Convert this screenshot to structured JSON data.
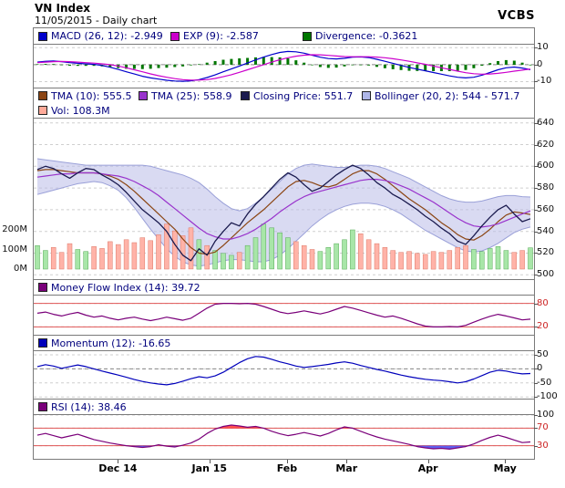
{
  "header": {
    "title": "VN Index",
    "subtitle": "11/05/2015 - Daily chart",
    "brand": "VCBS"
  },
  "legends": {
    "macd": [
      {
        "label": "MACD (26, 12): -2.949",
        "color": "#0000CC"
      },
      {
        "label": "EXP (9): -2.587",
        "color": "#CC00CC"
      },
      {
        "label": "Divergence: -0.3621",
        "color": "#007700"
      }
    ],
    "price_row1": [
      {
        "label": "TMA (10): 555.5",
        "color": "#8B4513"
      },
      {
        "label": "TMA (25): 558.9",
        "color": "#9933CC"
      },
      {
        "label": "Closing Price: 551.7",
        "color": "#1A1A4E"
      },
      {
        "label": "Bollinger (20, 2): 544 - 571.7",
        "color": "#AEB6E8"
      }
    ],
    "price_row2": [
      {
        "label": "Vol: 108.3M",
        "color": "#FFAA99"
      }
    ],
    "mfi": [
      {
        "label": "Money Flow Index (14): 39.72",
        "color": "#7A007A"
      }
    ],
    "momentum": [
      {
        "label": "Momentum (12): -16.65",
        "color": "#0000BB"
      }
    ],
    "rsi": [
      {
        "label": "RSI (14): 38.46",
        "color": "#7A007A"
      }
    ]
  },
  "x_axis": {
    "labels": [
      {
        "t": "Dec 14",
        "f": 0.17
      },
      {
        "t": "Jan 15",
        "f": 0.353
      },
      {
        "t": "Feb",
        "f": 0.508
      },
      {
        "t": "Mar",
        "f": 0.627
      },
      {
        "t": "Apr",
        "f": 0.79
      },
      {
        "t": "May",
        "f": 0.944
      }
    ]
  },
  "chart_data": [
    {
      "id": "macd",
      "type": "line",
      "title": "MACD indicator panel",
      "yticks": [
        10,
        0,
        -10
      ],
      "current": {
        "macd": -2.949,
        "exp": -2.587,
        "divergence": -0.3621
      },
      "series": [
        {
          "name": "MACD (26, 12)",
          "color": "#0000CC",
          "values": [
            1.5,
            2.0,
            2.2,
            1.8,
            1.2,
            0.8,
            0.5,
            0.2,
            -0.5,
            -1.5,
            -2.8,
            -4.2,
            -5.5,
            -6.8,
            -7.8,
            -8.5,
            -9.2,
            -9.6,
            -9.8,
            -9.5,
            -8.8,
            -7.6,
            -6.0,
            -4.2,
            -2.5,
            -0.8,
            1.0,
            2.8,
            4.5,
            6.0,
            7.2,
            7.8,
            7.6,
            6.8,
            5.6,
            4.4,
            3.6,
            3.4,
            3.8,
            4.4,
            4.6,
            4.2,
            3.2,
            2.0,
            0.8,
            -0.4,
            -1.6,
            -2.6,
            -3.6,
            -4.6,
            -5.6,
            -6.6,
            -7.4,
            -7.8,
            -7.4,
            -6.2,
            -4.6,
            -3.0,
            -1.8,
            -1.4,
            -2.0,
            -2.949
          ]
        },
        {
          "name": "EXP (9)",
          "color": "#CC00CC",
          "values": [
            1.2,
            1.5,
            1.8,
            1.9,
            1.8,
            1.5,
            1.2,
            0.9,
            0.5,
            0.0,
            -0.8,
            -1.8,
            -3.0,
            -4.2,
            -5.4,
            -6.5,
            -7.4,
            -8.2,
            -8.8,
            -9.1,
            -9.1,
            -8.8,
            -8.1,
            -7.1,
            -5.9,
            -4.5,
            -3.0,
            -1.5,
            0.0,
            1.5,
            2.9,
            4.1,
            5.0,
            5.6,
            5.9,
            5.8,
            5.5,
            5.1,
            4.8,
            4.7,
            4.7,
            4.7,
            4.5,
            4.1,
            3.5,
            2.8,
            2.0,
            1.1,
            0.2,
            -0.8,
            -1.8,
            -2.8,
            -3.8,
            -4.7,
            -5.3,
            -5.6,
            -5.5,
            -5.1,
            -4.5,
            -3.8,
            -3.2,
            -2.587
          ]
        }
      ],
      "histogram": {
        "name": "Divergence",
        "color": "#007700",
        "values": [
          0.3,
          0.5,
          0.4,
          -0.1,
          -0.6,
          -0.7,
          -0.7,
          -0.7,
          -1.0,
          -1.5,
          -2.0,
          -2.4,
          -2.5,
          -2.6,
          -2.4,
          -2.0,
          -1.8,
          -1.4,
          -1.0,
          -0.4,
          0.3,
          1.2,
          2.1,
          2.9,
          3.4,
          3.7,
          4.0,
          4.3,
          4.5,
          4.5,
          4.3,
          3.7,
          2.6,
          1.2,
          -0.3,
          -1.4,
          -1.9,
          -1.7,
          -1.0,
          -0.3,
          -0.1,
          -0.5,
          -1.3,
          -2.1,
          -2.7,
          -3.2,
          -3.6,
          -3.7,
          -3.8,
          -3.8,
          -3.8,
          -3.8,
          -3.6,
          -3.1,
          -2.1,
          -0.6,
          0.9,
          2.1,
          2.7,
          2.4,
          1.2,
          -0.362
        ]
      }
    },
    {
      "id": "price",
      "type": "line",
      "title": "VN Index price with Bollinger bands and volume",
      "yticks": [
        640,
        620,
        600,
        580,
        560,
        540,
        520,
        500
      ],
      "vol_ticks": [
        {
          "t": "200M",
          "v": 200
        },
        {
          "t": "100M",
          "v": 100
        },
        {
          "t": "0M",
          "v": 0
        }
      ],
      "current": {
        "tma10": 555.5,
        "tma25": 558.9,
        "close": 551.7,
        "bollinger": "544 - 571.7",
        "vol": "108.3M"
      },
      "series": [
        {
          "name": "TMA (10)",
          "color": "#8B4513",
          "values": [
            596,
            597,
            597,
            596,
            595,
            594,
            594,
            594,
            593,
            591,
            588,
            583,
            577,
            570,
            563,
            556,
            549,
            542,
            533,
            525,
            520,
            519,
            521,
            527,
            534,
            541,
            548,
            554,
            560,
            567,
            574,
            581,
            586,
            587,
            585,
            582,
            581,
            583,
            588,
            593,
            596,
            596,
            593,
            588,
            582,
            576,
            570,
            565,
            560,
            554,
            548,
            543,
            537,
            533,
            532,
            536,
            542,
            549,
            555,
            558,
            557,
            555.5
          ]
        },
        {
          "name": "TMA (25)",
          "color": "#9933CC",
          "values": [
            590,
            591,
            592,
            593,
            593,
            594,
            594,
            594,
            593,
            592,
            591,
            589,
            586,
            582,
            578,
            573,
            567,
            561,
            555,
            549,
            543,
            538,
            535,
            533,
            533,
            535,
            538,
            542,
            547,
            552,
            558,
            563,
            568,
            572,
            575,
            577,
            579,
            581,
            583,
            585,
            587,
            588,
            588,
            587,
            585,
            582,
            579,
            575,
            571,
            567,
            562,
            557,
            552,
            548,
            545,
            544,
            545,
            547,
            550,
            553,
            556,
            558.9
          ]
        },
        {
          "name": "Closing Price",
          "color": "#1A1A4E",
          "width": 1.3,
          "values": [
            597,
            600,
            598,
            593,
            589,
            594,
            598,
            597,
            592,
            588,
            583,
            576,
            568,
            560,
            554,
            548,
            540,
            528,
            518,
            513,
            524,
            518,
            531,
            540,
            548,
            545,
            556,
            565,
            572,
            580,
            588,
            594,
            590,
            583,
            577,
            580,
            586,
            592,
            597,
            601,
            598,
            592,
            585,
            580,
            574,
            570,
            565,
            560,
            554,
            549,
            543,
            538,
            531,
            528,
            536,
            545,
            553,
            560,
            564,
            556,
            549,
            551.7
          ]
        }
      ],
      "band": {
        "name": "Bollinger (20, 2)",
        "fill": "#B9BCE8",
        "edge": "#9AA0D8",
        "upper": [
          607,
          606,
          605,
          604,
          603,
          602,
          601,
          601,
          601,
          601,
          601,
          601,
          601,
          601,
          600,
          598,
          596,
          594,
          592,
          589,
          585,
          579,
          572,
          566,
          561,
          559,
          561,
          566,
          572,
          579,
          586,
          593,
          598,
          601,
          602,
          601,
          600,
          599,
          599,
          600,
          601,
          601,
          600,
          598,
          595,
          592,
          589,
          585,
          581,
          577,
          573,
          570,
          568,
          567,
          567,
          568,
          570,
          572,
          573,
          573,
          572,
          571.7
        ],
        "lower": [
          574,
          576,
          578,
          580,
          582,
          584,
          585,
          586,
          585,
          582,
          578,
          571,
          562,
          552,
          542,
          533,
          524,
          517,
          512,
          509,
          508,
          509,
          511,
          513,
          514,
          514,
          513,
          512,
          512,
          514,
          518,
          524,
          531,
          538,
          545,
          551,
          556,
          560,
          563,
          565,
          566,
          566,
          565,
          563,
          560,
          556,
          551,
          546,
          541,
          537,
          533,
          529,
          525,
          522,
          521,
          522,
          525,
          529,
          534,
          539,
          542,
          544
        ]
      },
      "volume": {
        "name": "Vol",
        "unit": "M",
        "up_color": "#A8E6A8",
        "up_edge": "#55AA55",
        "down_color": "#FFB3A8",
        "down_edge": "#DD7766",
        "values": [
          120,
          95,
          110,
          85,
          130,
          100,
          90,
          115,
          105,
          140,
          125,
          150,
          135,
          160,
          145,
          175,
          230,
          195,
          170,
          210,
          150,
          120,
          95,
          80,
          70,
          85,
          120,
          160,
          230,
          210,
          185,
          160,
          140,
          120,
          100,
          90,
          110,
          130,
          150,
          200,
          180,
          150,
          130,
          110,
          95,
          85,
          90,
          80,
          75,
          90,
          85,
          95,
          110,
          120,
          100,
          90,
          105,
          115,
          95,
          85,
          95,
          108.3
        ]
      }
    },
    {
      "id": "mfi",
      "type": "line",
      "title": "Money Flow Index (14)",
      "yticks": [
        80,
        20
      ],
      "red_ticks": [
        80,
        20
      ],
      "levels": [
        80,
        20
      ],
      "current": 39.72,
      "series": [
        {
          "name": "Money Flow Index (14)",
          "color": "#7A007A",
          "values": [
            55,
            58,
            52,
            48,
            53,
            57,
            50,
            45,
            48,
            42,
            38,
            42,
            45,
            40,
            36,
            40,
            45,
            41,
            37,
            42,
            55,
            68,
            78,
            80,
            80,
            79,
            80,
            78,
            72,
            65,
            58,
            54,
            57,
            61,
            57,
            53,
            58,
            65,
            72,
            68,
            62,
            56,
            50,
            45,
            48,
            42,
            35,
            28,
            22,
            20,
            20,
            21,
            20,
            24,
            32,
            40,
            47,
            52,
            48,
            43,
            38,
            39.72
          ]
        }
      ]
    },
    {
      "id": "momentum",
      "type": "line",
      "title": "Momentum (12)",
      "yticks": [
        50,
        0,
        -50,
        -100
      ],
      "current": -16.65,
      "series": [
        {
          "name": "Momentum (12)",
          "color": "#0000BB",
          "values": [
            8,
            15,
            10,
            2,
            8,
            14,
            8,
            0,
            -8,
            -15,
            -22,
            -30,
            -38,
            -45,
            -50,
            -54,
            -57,
            -52,
            -44,
            -35,
            -28,
            -32,
            -25,
            -12,
            5,
            22,
            36,
            44,
            42,
            34,
            25,
            18,
            10,
            5,
            8,
            12,
            16,
            21,
            25,
            20,
            12,
            5,
            -2,
            -8,
            -15,
            -22,
            -28,
            -33,
            -37,
            -40,
            -42,
            -46,
            -50,
            -46,
            -36,
            -24,
            -12,
            -5,
            -8,
            -14,
            -18,
            -16.65
          ]
        }
      ]
    },
    {
      "id": "rsi",
      "type": "line",
      "title": "RSI (14)",
      "yticks": [
        100,
        70,
        30
      ],
      "red_ticks": [
        70,
        30
      ],
      "levels": [
        70,
        30
      ],
      "fills": {
        "above": {
          "level": 70,
          "color": "#FF3333"
        },
        "below": {
          "level": 30,
          "color": "#4444EE"
        }
      },
      "current": 38.46,
      "series": [
        {
          "name": "RSI (14)",
          "color": "#7A007A",
          "values": [
            54,
            58,
            53,
            48,
            52,
            56,
            50,
            44,
            40,
            36,
            33,
            30,
            28,
            26,
            28,
            32,
            29,
            27,
            31,
            36,
            45,
            58,
            68,
            74,
            77,
            75,
            72,
            74,
            70,
            63,
            57,
            53,
            56,
            60,
            56,
            52,
            58,
            66,
            73,
            70,
            63,
            56,
            50,
            45,
            41,
            37,
            33,
            28,
            25,
            23,
            24,
            22,
            25,
            28,
            34,
            42,
            49,
            54,
            49,
            43,
            37,
            38.46
          ]
        }
      ]
    }
  ]
}
